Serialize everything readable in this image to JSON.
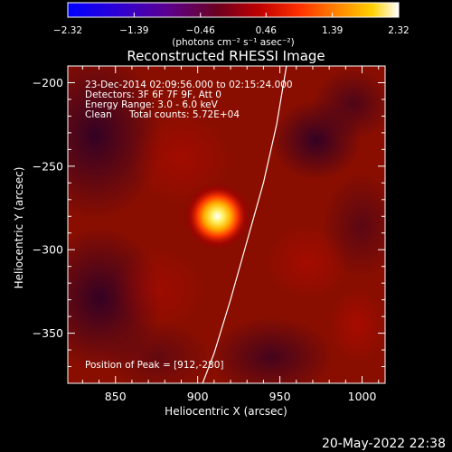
{
  "colorbar": {
    "ticks": [
      "-2.32",
      "-1.39",
      "-0.46",
      "0.46",
      "1.39",
      "2.32"
    ],
    "unit_label": "(photons cm⁻² s⁻¹ asec⁻²)",
    "range": [
      -2.32,
      2.32
    ]
  },
  "chart_data": {
    "type": "heatmap",
    "title": "Reconstructed RHESSI Image",
    "xlabel": "Heliocentric X (arcsec)",
    "ylabel": "Heliocentric Y (arcsec)",
    "xlim": [
      821,
      1014
    ],
    "ylim": [
      -380,
      -190
    ],
    "x_ticks": [
      850,
      900,
      950,
      1000
    ],
    "y_ticks": [
      -200,
      -250,
      -300,
      -350
    ],
    "x_tick_labels": [
      "850",
      "900",
      "950",
      "1000"
    ],
    "y_tick_labels": [
      "−200",
      "−250",
      "−300",
      "−350"
    ],
    "peak": {
      "x": 912,
      "y": -280
    },
    "limb_curve": {
      "points": [
        [
          954,
          -190
        ],
        [
          948,
          -225
        ],
        [
          940,
          -260
        ],
        [
          930,
          -295
        ],
        [
          920,
          -330
        ],
        [
          910,
          -362
        ],
        [
          903,
          -380
        ]
      ]
    },
    "annotations": {
      "time_range": "23-Dec-2014 02:09:56.000 to 02:15:24.000",
      "detectors": "Detectors: 3F 6F 7F 9F, Att 0",
      "energy": "Energy Range: 3.0 - 6.0 keV",
      "clean": "Clean",
      "total_counts": "Total counts: 5.72E+04",
      "peak_position": "Position of Peak = [912,-280]"
    }
  },
  "footer": {
    "timestamp": "20-May-2022 22:38"
  }
}
